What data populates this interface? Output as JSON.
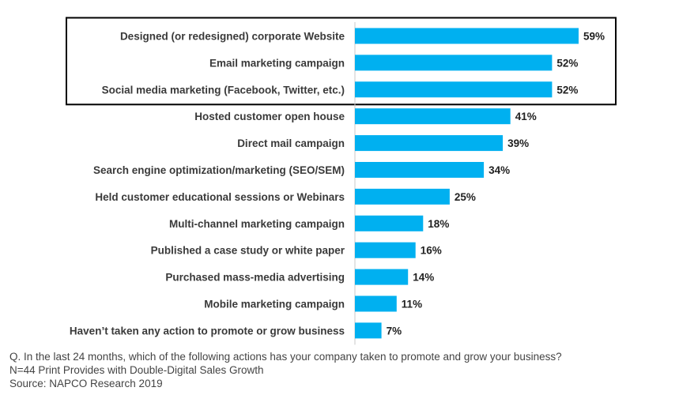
{
  "chart_data": {
    "type": "bar",
    "orientation": "horizontal",
    "categories": [
      "Designed (or redesigned) corporate Website",
      "Email marketing campaign",
      "Social media marketing (Facebook, Twitter, etc.)",
      "Hosted customer open house",
      "Direct mail campaign",
      "Search engine optimization/marketing (SEO/SEM)",
      "Held customer educational sessions or Webinars",
      "Multi-channel marketing campaign",
      "Published a case study or white paper",
      "Purchased mass-media advertising",
      "Mobile marketing campaign",
      "Haven’t taken any action to promote or grow business"
    ],
    "values": [
      59,
      52,
      52,
      41,
      39,
      34,
      25,
      18,
      16,
      14,
      11,
      7
    ],
    "value_labels": [
      "59%",
      "52%",
      "52%",
      "41%",
      "39%",
      "34%",
      "25%",
      "18%",
      "16%",
      "14%",
      "11%",
      "7%"
    ],
    "unit": "%",
    "highlighted_categories": [
      0,
      1,
      2
    ],
    "bar_color": "#00b0f0",
    "highlight_border_color": "#000000",
    "axis_color": "#c8c8c8",
    "xlim": [
      0,
      65
    ],
    "grid": false,
    "legend": "none"
  },
  "footnote": {
    "question": "Q. In the last 24 months, which of the following actions has your company taken to promote and grow your business?",
    "sample": "N=44 Print Provides with Double-Digital Sales Growth",
    "source": "Source: NAPCO Research 2019"
  }
}
